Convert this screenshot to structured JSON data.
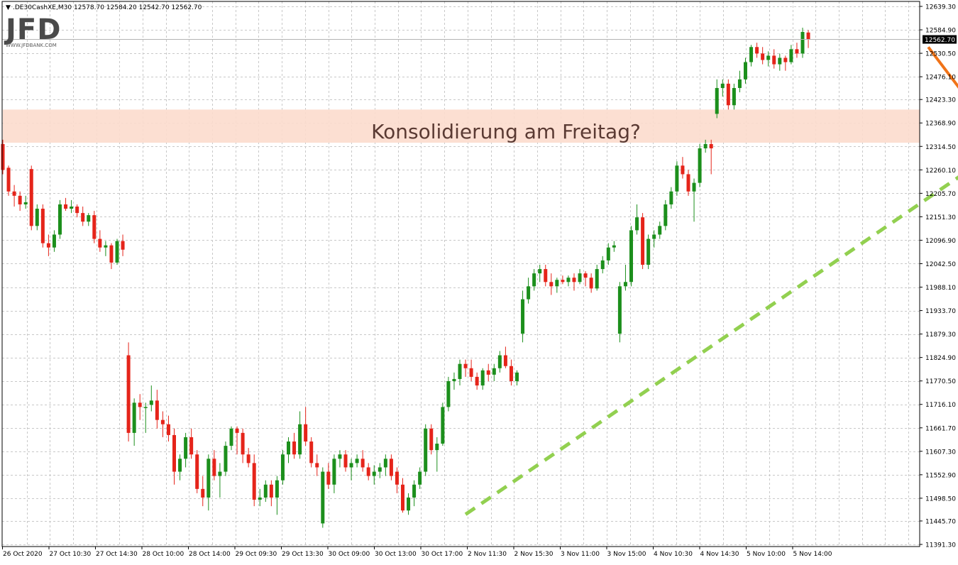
{
  "header": {
    "menu_glyph": "▼",
    "symbol": ".DE30CashXE,M30",
    "ohlc": "12578.70 12584.20 12542.70 12562.70"
  },
  "logo": {
    "text": "JFD",
    "sub": "WWW.JFDBANK.COM"
  },
  "annotation": {
    "text": "Konsolidierung am Freitag?"
  },
  "price_marker": "12562.70",
  "colors": {
    "bull": "#1c8f1c",
    "bear": "#e5241a",
    "zone": "#fcdccd",
    "trendline": "#92d050",
    "arrow": "#f07318",
    "grid": "#c8c8c8"
  },
  "chart_data": {
    "type": "candlestick",
    "title": "",
    "symbol": ".DE30CashXE",
    "timeframe": "M30",
    "ylim": [
      11391.3,
      12639.3
    ],
    "y_ticks": [
      "12639.30",
      "12584.90",
      "12530.50",
      "12476.10",
      "12423.30",
      "12368.90",
      "12314.50",
      "12260.10",
      "12205.70",
      "12151.30",
      "12096.90",
      "12042.50",
      "11988.10",
      "11933.70",
      "11879.30",
      "11824.90",
      "11770.50",
      "11716.10",
      "11661.70",
      "11607.30",
      "11552.90",
      "11498.50",
      "11445.70",
      "11391.30"
    ],
    "x_labels": [
      "26 Oct 2020",
      "27 Oct 10:30",
      "27 Oct 14:30",
      "28 Oct 10:00",
      "28 Oct 14:00",
      "29 Oct 09:30",
      "29 Oct 13:30",
      "30 Oct 09:00",
      "30 Oct 13:00",
      "30 Oct 17:00",
      "2 Nov 11:30",
      "2 Nov 15:30",
      "3 Nov 11:00",
      "3 Nov 15:00",
      "4 Nov 10:30",
      "4 Nov 14:30",
      "5 Nov 10:00",
      "5 Nov 14:00"
    ],
    "last_price": 12562.7,
    "zone": {
      "from": 12323.0,
      "to": 12400.0,
      "label": "Konsolidierung am Freitag?"
    },
    "trendline": {
      "from_index": 81,
      "from_price": 11461.0,
      "to_index": 178,
      "to_price": 12340.0,
      "style": "dashed"
    },
    "arrow": {
      "from_index": 162,
      "from_price": 12545.0,
      "to_index": 172,
      "to_price": 12370.0
    },
    "candles": [
      {
        "o": 12320,
        "h": 12330,
        "l": 12250,
        "c": 12260
      },
      {
        "o": 12265,
        "h": 12270,
        "l": 12200,
        "c": 12210
      },
      {
        "o": 12210,
        "h": 12225,
        "l": 12175,
        "c": 12200
      },
      {
        "o": 12200,
        "h": 12210,
        "l": 12165,
        "c": 12180
      },
      {
        "o": 12180,
        "h": 12200,
        "l": 12170,
        "c": 12185
      },
      {
        "o": 12262,
        "h": 12270,
        "l": 12120,
        "c": 12130
      },
      {
        "o": 12130,
        "h": 12180,
        "l": 12120,
        "c": 12170
      },
      {
        "o": 12170,
        "h": 12180,
        "l": 12080,
        "c": 12090
      },
      {
        "o": 12090,
        "h": 12110,
        "l": 12060,
        "c": 12080
      },
      {
        "o": 12080,
        "h": 12120,
        "l": 12070,
        "c": 12110
      },
      {
        "o": 12110,
        "h": 12190,
        "l": 12100,
        "c": 12180
      },
      {
        "o": 12180,
        "h": 12195,
        "l": 12165,
        "c": 12170
      },
      {
        "o": 12170,
        "h": 12190,
        "l": 12160,
        "c": 12175
      },
      {
        "o": 12175,
        "h": 12180,
        "l": 12150,
        "c": 12160
      },
      {
        "o": 12160,
        "h": 12175,
        "l": 12130,
        "c": 12140
      },
      {
        "o": 12140,
        "h": 12160,
        "l": 12130,
        "c": 12155
      },
      {
        "o": 12155,
        "h": 12165,
        "l": 12090,
        "c": 12100
      },
      {
        "o": 12100,
        "h": 12120,
        "l": 12070,
        "c": 12080
      },
      {
        "o": 12080,
        "h": 12095,
        "l": 12060,
        "c": 12085
      },
      {
        "o": 12085,
        "h": 12090,
        "l": 12030,
        "c": 12045
      },
      {
        "o": 12045,
        "h": 12100,
        "l": 12040,
        "c": 12095
      },
      {
        "o": 12095,
        "h": 12110,
        "l": 12060,
        "c": 12075
      },
      {
        "o": 11830,
        "h": 11860,
        "l": 11630,
        "c": 11650
      },
      {
        "o": 11650,
        "h": 11730,
        "l": 11620,
        "c": 11720
      },
      {
        "o": 11720,
        "h": 11740,
        "l": 11680,
        "c": 11710
      },
      {
        "o": 11710,
        "h": 11720,
        "l": 11650,
        "c": 11710
      },
      {
        "o": 11715,
        "h": 11760,
        "l": 11700,
        "c": 11725
      },
      {
        "o": 11725,
        "h": 11750,
        "l": 11660,
        "c": 11680
      },
      {
        "o": 11680,
        "h": 11700,
        "l": 11640,
        "c": 11670
      },
      {
        "o": 11670,
        "h": 11690,
        "l": 11630,
        "c": 11645
      },
      {
        "o": 11645,
        "h": 11660,
        "l": 11530,
        "c": 11560
      },
      {
        "o": 11560,
        "h": 11600,
        "l": 11540,
        "c": 11590
      },
      {
        "o": 11590,
        "h": 11650,
        "l": 11570,
        "c": 11640
      },
      {
        "o": 11640,
        "h": 11660,
        "l": 11590,
        "c": 11600
      },
      {
        "o": 11600,
        "h": 11610,
        "l": 11510,
        "c": 11520
      },
      {
        "o": 11520,
        "h": 11550,
        "l": 11480,
        "c": 11500
      },
      {
        "o": 11500,
        "h": 11600,
        "l": 11470,
        "c": 11590
      },
      {
        "o": 11590,
        "h": 11610,
        "l": 11540,
        "c": 11550
      },
      {
        "o": 11550,
        "h": 11580,
        "l": 11500,
        "c": 11560
      },
      {
        "o": 11560,
        "h": 11630,
        "l": 11550,
        "c": 11620
      },
      {
        "o": 11620,
        "h": 11665,
        "l": 11610,
        "c": 11660
      },
      {
        "o": 11660,
        "h": 11665,
        "l": 11600,
        "c": 11650
      },
      {
        "o": 11650,
        "h": 11660,
        "l": 11580,
        "c": 11600
      },
      {
        "o": 11600,
        "h": 11615,
        "l": 11570,
        "c": 11580
      },
      {
        "o": 11580,
        "h": 11600,
        "l": 11480,
        "c": 11495
      },
      {
        "o": 11495,
        "h": 11520,
        "l": 11480,
        "c": 11500
      },
      {
        "o": 11500,
        "h": 11540,
        "l": 11490,
        "c": 11530
      },
      {
        "o": 11530,
        "h": 11540,
        "l": 11480,
        "c": 11500
      },
      {
        "o": 11500,
        "h": 11550,
        "l": 11460,
        "c": 11540
      },
      {
        "o": 11540,
        "h": 11610,
        "l": 11530,
        "c": 11600
      },
      {
        "o": 11600,
        "h": 11640,
        "l": 11580,
        "c": 11630
      },
      {
        "o": 11630,
        "h": 11650,
        "l": 11590,
        "c": 11600
      },
      {
        "o": 11600,
        "h": 11700,
        "l": 11590,
        "c": 11670
      },
      {
        "o": 11670,
        "h": 11710,
        "l": 11620,
        "c": 11630
      },
      {
        "o": 11630,
        "h": 11640,
        "l": 11570,
        "c": 11580
      },
      {
        "o": 11580,
        "h": 11600,
        "l": 11550,
        "c": 11570
      },
      {
        "o": 11440,
        "h": 11570,
        "l": 11430,
        "c": 11560
      },
      {
        "o": 11560,
        "h": 11580,
        "l": 11520,
        "c": 11530
      },
      {
        "o": 11530,
        "h": 11600,
        "l": 11510,
        "c": 11590
      },
      {
        "o": 11590,
        "h": 11610,
        "l": 11570,
        "c": 11600
      },
      {
        "o": 11600,
        "h": 11610,
        "l": 11560,
        "c": 11570
      },
      {
        "o": 11570,
        "h": 11590,
        "l": 11540,
        "c": 11580
      },
      {
        "o": 11580,
        "h": 11600,
        "l": 11570,
        "c": 11590
      },
      {
        "o": 11590,
        "h": 11610,
        "l": 11560,
        "c": 11570
      },
      {
        "o": 11570,
        "h": 11580,
        "l": 11540,
        "c": 11550
      },
      {
        "o": 11550,
        "h": 11575,
        "l": 11530,
        "c": 11560
      },
      {
        "o": 11560,
        "h": 11580,
        "l": 11545,
        "c": 11570
      },
      {
        "o": 11570,
        "h": 11600,
        "l": 11550,
        "c": 11590
      },
      {
        "o": 11590,
        "h": 11600,
        "l": 11540,
        "c": 11550
      },
      {
        "o": 11560,
        "h": 11570,
        "l": 11510,
        "c": 11530
      },
      {
        "o": 11530,
        "h": 11545,
        "l": 11465,
        "c": 11470
      },
      {
        "o": 11470,
        "h": 11510,
        "l": 11460,
        "c": 11500
      },
      {
        "o": 11500,
        "h": 11540,
        "l": 11480,
        "c": 11530
      },
      {
        "o": 11530,
        "h": 11570,
        "l": 11520,
        "c": 11560
      },
      {
        "o": 11560,
        "h": 11670,
        "l": 11550,
        "c": 11660
      },
      {
        "o": 11660,
        "h": 11670,
        "l": 11600,
        "c": 11610
      },
      {
        "o": 11610,
        "h": 11640,
        "l": 11560,
        "c": 11625
      },
      {
        "o": 11625,
        "h": 11720,
        "l": 11620,
        "c": 11710
      },
      {
        "o": 11710,
        "h": 11780,
        "l": 11700,
        "c": 11770
      },
      {
        "o": 11770,
        "h": 11790,
        "l": 11750,
        "c": 11775
      },
      {
        "o": 11775,
        "h": 11820,
        "l": 11760,
        "c": 11810
      },
      {
        "o": 11810,
        "h": 11820,
        "l": 11780,
        "c": 11800
      },
      {
        "o": 11800,
        "h": 11820,
        "l": 11770,
        "c": 11780
      },
      {
        "o": 11780,
        "h": 11790,
        "l": 11750,
        "c": 11760
      },
      {
        "o": 11760,
        "h": 11800,
        "l": 11750,
        "c": 11795
      },
      {
        "o": 11795,
        "h": 11810,
        "l": 11770,
        "c": 11785
      },
      {
        "o": 11785,
        "h": 11810,
        "l": 11770,
        "c": 11800
      },
      {
        "o": 11800,
        "h": 11840,
        "l": 11790,
        "c": 11830
      },
      {
        "o": 11830,
        "h": 11850,
        "l": 11800,
        "c": 11805
      },
      {
        "o": 11805,
        "h": 11820,
        "l": 11760,
        "c": 11770
      },
      {
        "o": 11770,
        "h": 11795,
        "l": 11760,
        "c": 11790
      },
      {
        "o": 11880,
        "h": 11980,
        "l": 11860,
        "c": 11960
      },
      {
        "o": 11960,
        "h": 12010,
        "l": 11950,
        "c": 11990
      },
      {
        "o": 11990,
        "h": 12030,
        "l": 11980,
        "c": 12020
      },
      {
        "o": 12020,
        "h": 12040,
        "l": 12000,
        "c": 12030
      },
      {
        "o": 12030,
        "h": 12040,
        "l": 11990,
        "c": 12000
      },
      {
        "o": 12000,
        "h": 12020,
        "l": 11970,
        "c": 11990
      },
      {
        "o": 11990,
        "h": 12010,
        "l": 11975,
        "c": 12005
      },
      {
        "o": 12005,
        "h": 12015,
        "l": 11995,
        "c": 12000
      },
      {
        "o": 12000,
        "h": 12015,
        "l": 11990,
        "c": 12010
      },
      {
        "o": 12010,
        "h": 12020,
        "l": 11980,
        "c": 12000
      },
      {
        "o": 12000,
        "h": 12030,
        "l": 11995,
        "c": 12020
      },
      {
        "o": 12020,
        "h": 12025,
        "l": 11990,
        "c": 12010
      },
      {
        "o": 12010,
        "h": 12020,
        "l": 11975,
        "c": 11985
      },
      {
        "o": 11985,
        "h": 12040,
        "l": 11980,
        "c": 12030
      },
      {
        "o": 12030,
        "h": 12060,
        "l": 12020,
        "c": 12050
      },
      {
        "o": 12050,
        "h": 12090,
        "l": 12040,
        "c": 12080
      },
      {
        "o": 12080,
        "h": 12095,
        "l": 12070,
        "c": 12085
      },
      {
        "o": 11880,
        "h": 12000,
        "l": 11860,
        "c": 11990
      },
      {
        "o": 11990,
        "h": 12040,
        "l": 11980,
        "c": 12000
      },
      {
        "o": 12000,
        "h": 12130,
        "l": 11990,
        "c": 12120
      },
      {
        "o": 12120,
        "h": 12180,
        "l": 12110,
        "c": 12150
      },
      {
        "o": 12150,
        "h": 12160,
        "l": 12030,
        "c": 12040
      },
      {
        "o": 12040,
        "h": 12110,
        "l": 12030,
        "c": 12100
      },
      {
        "o": 12100,
        "h": 12120,
        "l": 12080,
        "c": 12110
      },
      {
        "o": 12110,
        "h": 12140,
        "l": 12100,
        "c": 12130
      },
      {
        "o": 12130,
        "h": 12190,
        "l": 12120,
        "c": 12180
      },
      {
        "o": 12180,
        "h": 12220,
        "l": 12170,
        "c": 12210
      },
      {
        "o": 12210,
        "h": 12280,
        "l": 12200,
        "c": 12270
      },
      {
        "o": 12270,
        "h": 12290,
        "l": 12240,
        "c": 12250
      },
      {
        "o": 12250,
        "h": 12260,
        "l": 12200,
        "c": 12210
      },
      {
        "o": 12210,
        "h": 12240,
        "l": 12140,
        "c": 12230
      },
      {
        "o": 12230,
        "h": 12320,
        "l": 12220,
        "c": 12310
      },
      {
        "o": 12310,
        "h": 12330,
        "l": 12300,
        "c": 12320
      },
      {
        "o": 12320,
        "h": 12330,
        "l": 12250,
        "c": 12310
      },
      {
        "o": 12390,
        "h": 12470,
        "l": 12380,
        "c": 12450
      },
      {
        "o": 12450,
        "h": 12470,
        "l": 12430,
        "c": 12460
      },
      {
        "o": 12460,
        "h": 12470,
        "l": 12400,
        "c": 12410
      },
      {
        "o": 12410,
        "h": 12460,
        "l": 12400,
        "c": 12450
      },
      {
        "o": 12450,
        "h": 12490,
        "l": 12440,
        "c": 12470
      },
      {
        "o": 12470,
        "h": 12520,
        "l": 12460,
        "c": 12510
      },
      {
        "o": 12510,
        "h": 12550,
        "l": 12500,
        "c": 12545
      },
      {
        "o": 12545,
        "h": 12555,
        "l": 12520,
        "c": 12530
      },
      {
        "o": 12530,
        "h": 12545,
        "l": 12505,
        "c": 12515
      },
      {
        "o": 12515,
        "h": 12535,
        "l": 12500,
        "c": 12525
      },
      {
        "o": 12525,
        "h": 12540,
        "l": 12495,
        "c": 12505
      },
      {
        "o": 12505,
        "h": 12530,
        "l": 12490,
        "c": 12520
      },
      {
        "o": 12520,
        "h": 12525,
        "l": 12490,
        "c": 12510
      },
      {
        "o": 12510,
        "h": 12550,
        "l": 12505,
        "c": 12540
      },
      {
        "o": 12540,
        "h": 12555,
        "l": 12520,
        "c": 12530
      },
      {
        "o": 12530,
        "h": 12590,
        "l": 12520,
        "c": 12580
      },
      {
        "o": 12578.7,
        "h": 12584.2,
        "l": 12542.7,
        "c": 12562.7
      }
    ]
  }
}
